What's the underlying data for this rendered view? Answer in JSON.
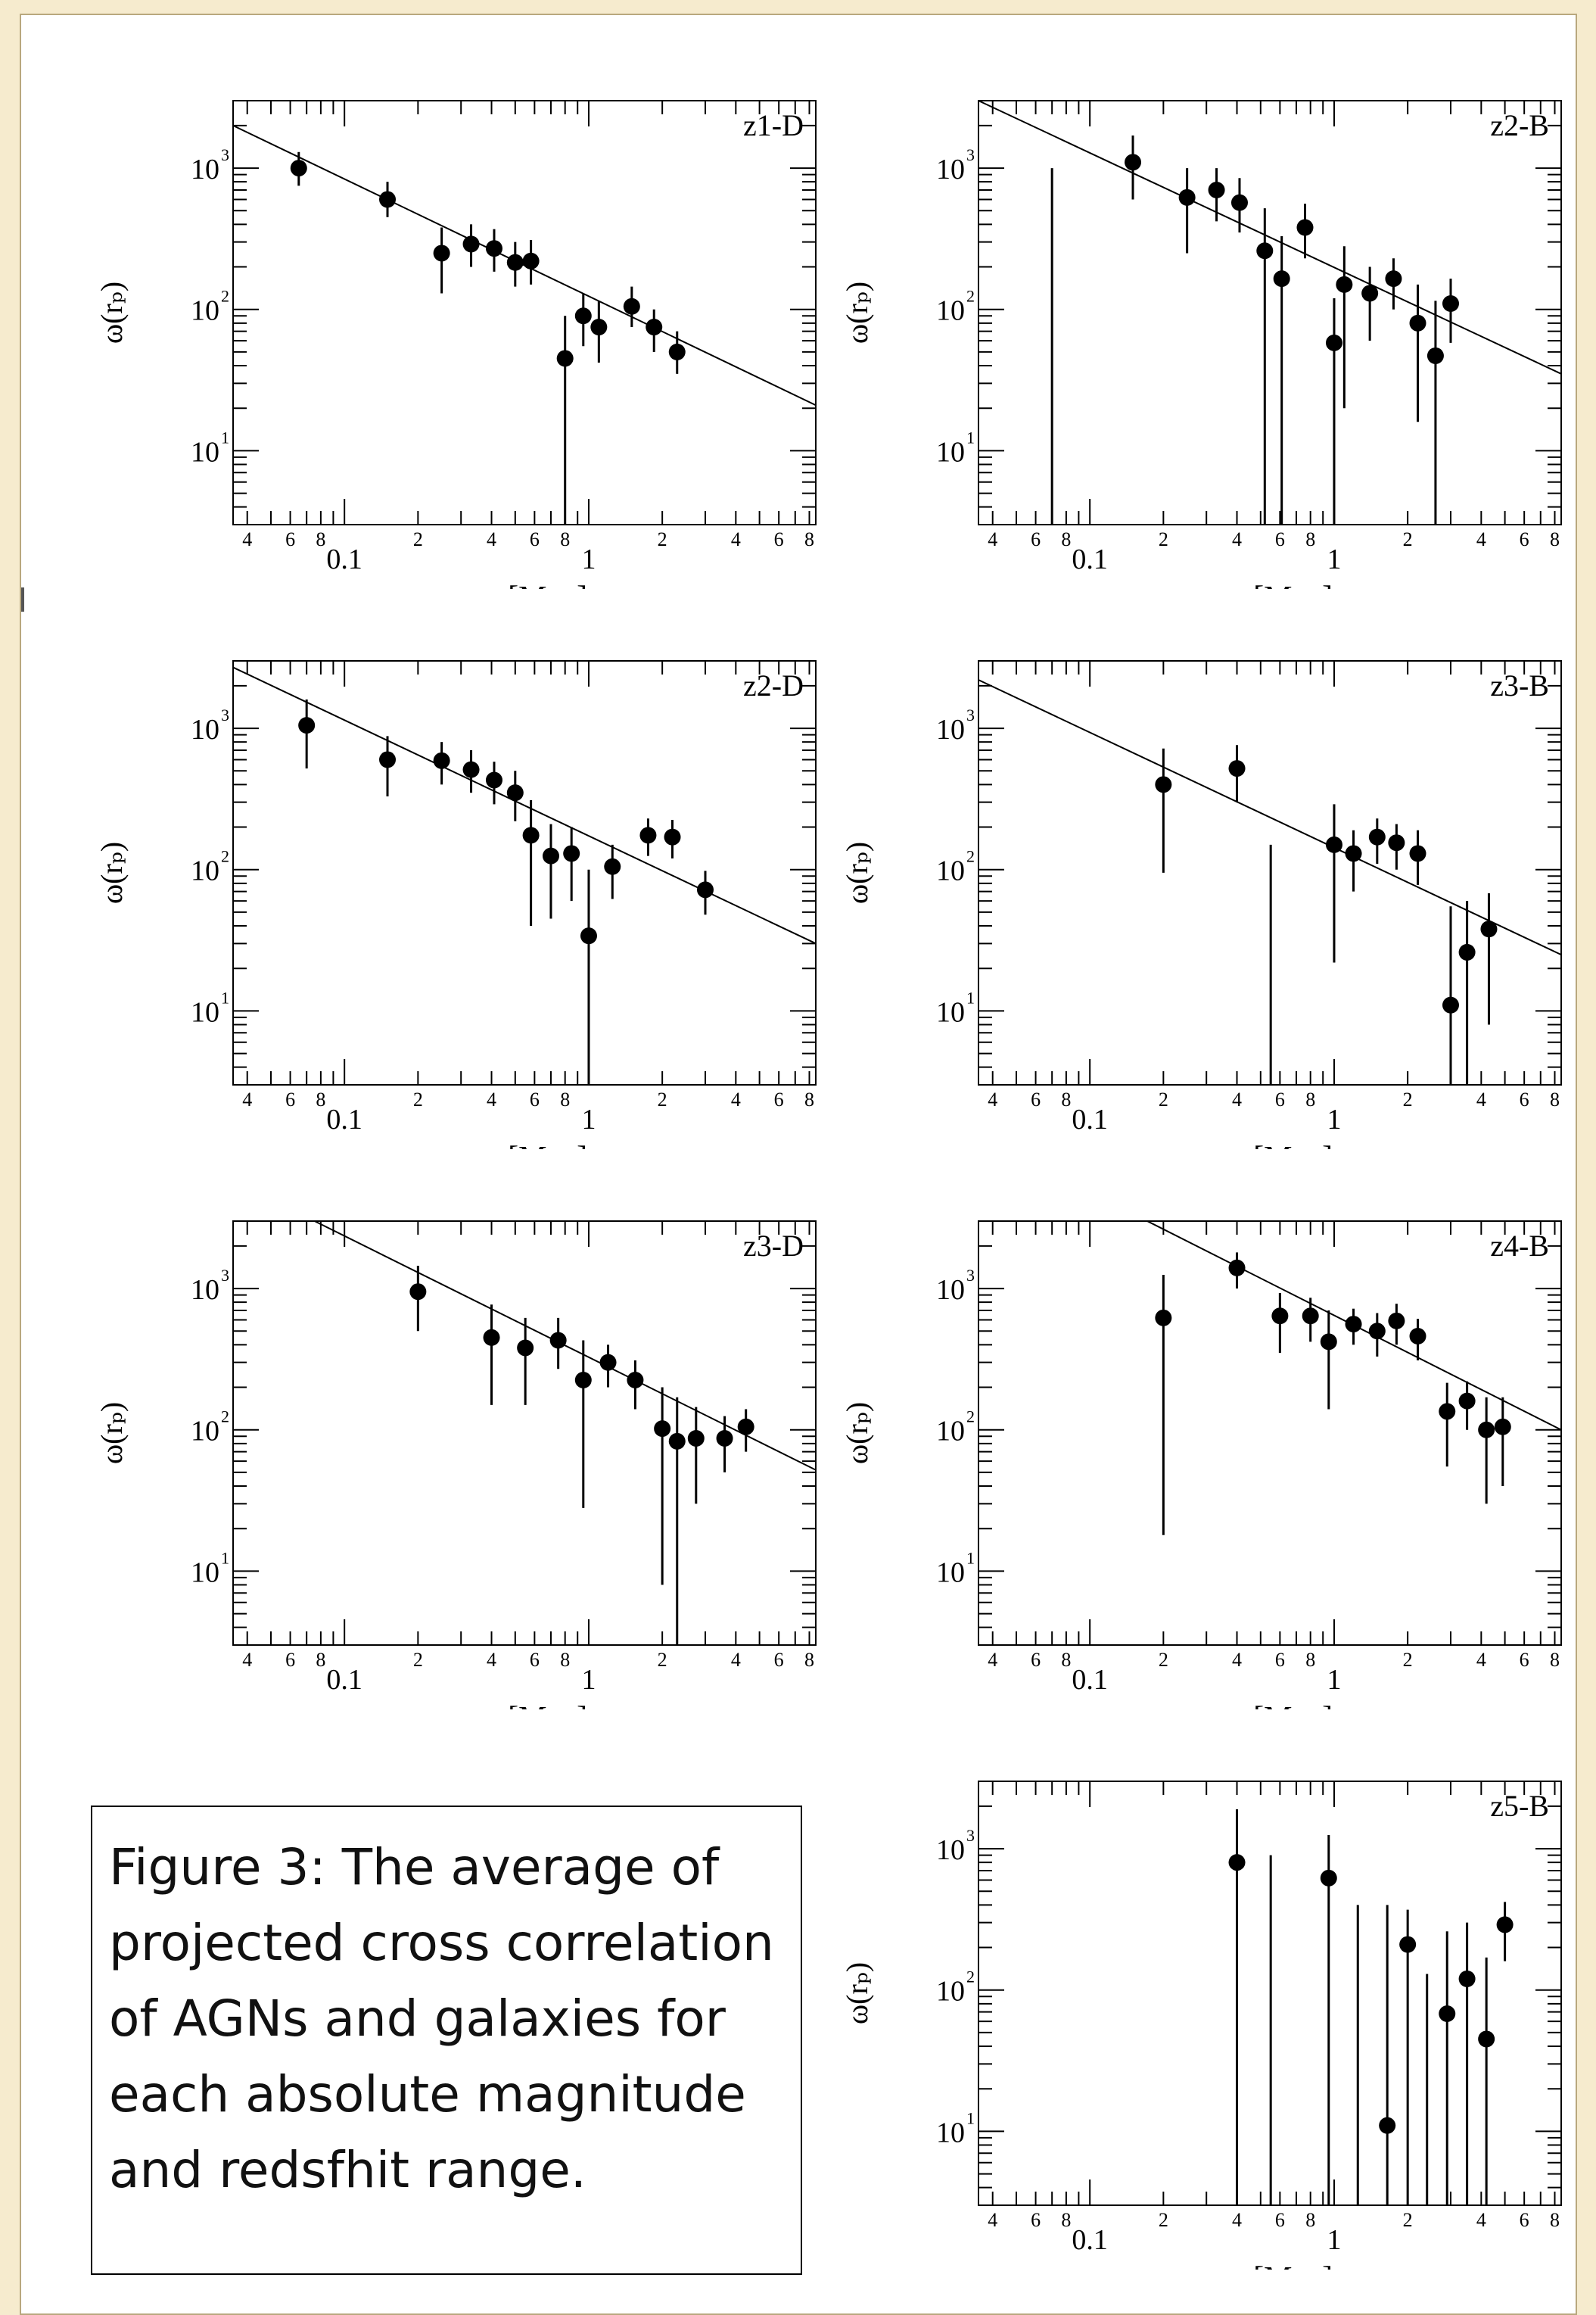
{
  "caption": {
    "text": "Figure 3: The average of projected cross correlation of AGNs and galaxies for each absolute magnitude and redsfhit range."
  },
  "axes": {
    "xlabel": "rₚ [Mpc]",
    "ylabel": "ω(rₚ)",
    "xscale": "log",
    "yscale": "log",
    "xlim": [
      0.035,
      8.5
    ],
    "ylim": [
      3,
      3000
    ],
    "x_major_ticks": [
      {
        "value": 0.1,
        "label": "0.1"
      },
      {
        "value": 1,
        "label": "1"
      }
    ],
    "x_minor_labels": [
      {
        "value": 0.04,
        "label": "4"
      },
      {
        "value": 0.06,
        "label": "6"
      },
      {
        "value": 0.08,
        "label": "8"
      },
      {
        "value": 0.2,
        "label": "2"
      },
      {
        "value": 0.4,
        "label": "4"
      },
      {
        "value": 0.6,
        "label": "6"
      },
      {
        "value": 0.8,
        "label": "8"
      },
      {
        "value": 2,
        "label": "2"
      },
      {
        "value": 4,
        "label": "4"
      },
      {
        "value": 6,
        "label": "6"
      },
      {
        "value": 8,
        "label": "8"
      }
    ],
    "y_ticks": [
      {
        "value": 10,
        "label": "10",
        "exp": "1"
      },
      {
        "value": 100,
        "label": "10",
        "exp": "2"
      },
      {
        "value": 1000,
        "label": "10",
        "exp": "3"
      }
    ]
  },
  "chart_data": [
    {
      "type": "scatter",
      "title": "z1-D",
      "fit_line": [
        [
          0.035,
          2000
        ],
        [
          8.5,
          21
        ]
      ],
      "points": [
        {
          "x": 0.065,
          "y": 1000,
          "lo": 750,
          "hi": 1300
        },
        {
          "x": 0.15,
          "y": 600,
          "lo": 450,
          "hi": 800
        },
        {
          "x": 0.25,
          "y": 250,
          "lo": 130,
          "hi": 380
        },
        {
          "x": 0.33,
          "y": 290,
          "lo": 200,
          "hi": 400
        },
        {
          "x": 0.41,
          "y": 270,
          "lo": 185,
          "hi": 370
        },
        {
          "x": 0.5,
          "y": 215,
          "lo": 145,
          "hi": 300
        },
        {
          "x": 0.58,
          "y": 220,
          "lo": 150,
          "hi": 310
        },
        {
          "x": 0.8,
          "y": 45,
          "lo": 3,
          "hi": 90
        },
        {
          "x": 0.95,
          "y": 90,
          "lo": 55,
          "hi": 130
        },
        {
          "x": 1.1,
          "y": 75,
          "lo": 42,
          "hi": 115
        },
        {
          "x": 1.5,
          "y": 105,
          "lo": 75,
          "hi": 145
        },
        {
          "x": 1.85,
          "y": 75,
          "lo": 50,
          "hi": 100
        },
        {
          "x": 2.3,
          "y": 50,
          "lo": 35,
          "hi": 70
        }
      ]
    },
    {
      "type": "scatter",
      "title": "z2-B",
      "fit_line": [
        [
          0.035,
          3000
        ],
        [
          8.5,
          35
        ]
      ],
      "points": [
        {
          "x": 0.07,
          "y": null,
          "lo": 3,
          "hi": 1000
        },
        {
          "x": 0.15,
          "y": 1100,
          "lo": 600,
          "hi": 1700
        },
        {
          "x": 0.25,
          "y": 620,
          "lo": 250,
          "hi": 1000
        },
        {
          "x": 0.33,
          "y": 700,
          "lo": 420,
          "hi": 1000
        },
        {
          "x": 0.41,
          "y": 570,
          "lo": 350,
          "hi": 850
        },
        {
          "x": 0.52,
          "y": 260,
          "lo": 3,
          "hi": 520
        },
        {
          "x": 0.61,
          "y": 165,
          "lo": 3,
          "hi": 330
        },
        {
          "x": 0.76,
          "y": 380,
          "lo": 230,
          "hi": 560
        },
        {
          "x": 1.0,
          "y": 58,
          "lo": 3,
          "hi": 120
        },
        {
          "x": 1.1,
          "y": 150,
          "lo": 20,
          "hi": 280
        },
        {
          "x": 1.4,
          "y": 130,
          "lo": 60,
          "hi": 200
        },
        {
          "x": 1.75,
          "y": 165,
          "lo": 100,
          "hi": 230
        },
        {
          "x": 2.2,
          "y": 80,
          "lo": 16,
          "hi": 150
        },
        {
          "x": 2.6,
          "y": 47,
          "lo": 3,
          "hi": 115
        },
        {
          "x": 3.0,
          "y": 110,
          "lo": 58,
          "hi": 165
        }
      ]
    },
    {
      "type": "scatter",
      "title": "z2-D",
      "fit_line": [
        [
          0.035,
          2700
        ],
        [
          8.5,
          30
        ]
      ],
      "points": [
        {
          "x": 0.07,
          "y": 1050,
          "lo": 520,
          "hi": 1600
        },
        {
          "x": 0.15,
          "y": 600,
          "lo": 330,
          "hi": 880
        },
        {
          "x": 0.25,
          "y": 590,
          "lo": 400,
          "hi": 800
        },
        {
          "x": 0.33,
          "y": 510,
          "lo": 350,
          "hi": 700
        },
        {
          "x": 0.41,
          "y": 430,
          "lo": 290,
          "hi": 580
        },
        {
          "x": 0.5,
          "y": 350,
          "lo": 220,
          "hi": 500
        },
        {
          "x": 0.58,
          "y": 175,
          "lo": 40,
          "hi": 310
        },
        {
          "x": 0.7,
          "y": 125,
          "lo": 45,
          "hi": 210
        },
        {
          "x": 0.85,
          "y": 130,
          "lo": 60,
          "hi": 200
        },
        {
          "x": 1.0,
          "y": 34,
          "lo": 3,
          "hi": 100
        },
        {
          "x": 1.25,
          "y": 105,
          "lo": 62,
          "hi": 150
        },
        {
          "x": 1.75,
          "y": 175,
          "lo": 125,
          "hi": 230
        },
        {
          "x": 2.2,
          "y": 170,
          "lo": 120,
          "hi": 225
        },
        {
          "x": 3.0,
          "y": 72,
          "lo": 48,
          "hi": 98
        }
      ]
    },
    {
      "type": "scatter",
      "title": "z3-B",
      "fit_line": [
        [
          0.035,
          2200
        ],
        [
          8.5,
          25
        ]
      ],
      "points": [
        {
          "x": 0.2,
          "y": 400,
          "lo": 95,
          "hi": 720
        },
        {
          "x": 0.4,
          "y": 520,
          "lo": 300,
          "hi": 760
        },
        {
          "x": 0.55,
          "y": null,
          "lo": 3,
          "hi": 150
        },
        {
          "x": 1.0,
          "y": 150,
          "lo": 22,
          "hi": 290
        },
        {
          "x": 1.2,
          "y": 130,
          "lo": 70,
          "hi": 190
        },
        {
          "x": 1.5,
          "y": 170,
          "lo": 110,
          "hi": 230
        },
        {
          "x": 1.8,
          "y": 155,
          "lo": 100,
          "hi": 210
        },
        {
          "x": 2.2,
          "y": 130,
          "lo": 78,
          "hi": 190
        },
        {
          "x": 3.0,
          "y": 11,
          "lo": 3,
          "hi": 55
        },
        {
          "x": 3.5,
          "y": 26,
          "lo": 3,
          "hi": 60
        },
        {
          "x": 4.3,
          "y": 38,
          "lo": 8,
          "hi": 68
        }
      ]
    },
    {
      "type": "scatter",
      "title": "z3-D",
      "fit_line": [
        [
          0.035,
          5800
        ],
        [
          8.5,
          52
        ]
      ],
      "points": [
        {
          "x": 0.2,
          "y": 950,
          "lo": 500,
          "hi": 1450
        },
        {
          "x": 0.4,
          "y": 450,
          "lo": 150,
          "hi": 770
        },
        {
          "x": 0.55,
          "y": 380,
          "lo": 150,
          "hi": 620
        },
        {
          "x": 0.75,
          "y": 430,
          "lo": 270,
          "hi": 620
        },
        {
          "x": 0.95,
          "y": 225,
          "lo": 28,
          "hi": 430
        },
        {
          "x": 1.2,
          "y": 300,
          "lo": 200,
          "hi": 400
        },
        {
          "x": 1.55,
          "y": 225,
          "lo": 140,
          "hi": 310
        },
        {
          "x": 2.0,
          "y": 102,
          "lo": 8,
          "hi": 200
        },
        {
          "x": 2.3,
          "y": 83,
          "lo": 3,
          "hi": 170
        },
        {
          "x": 2.75,
          "y": 87,
          "lo": 30,
          "hi": 145
        },
        {
          "x": 3.6,
          "y": 87,
          "lo": 50,
          "hi": 125
        },
        {
          "x": 4.4,
          "y": 105,
          "lo": 70,
          "hi": 140
        }
      ]
    },
    {
      "type": "scatter",
      "title": "z4-B",
      "fit_line": [
        [
          0.035,
          12000
        ],
        [
          8.5,
          100
        ]
      ],
      "points": [
        {
          "x": 0.2,
          "y": 620,
          "lo": 18,
          "hi": 1250
        },
        {
          "x": 0.4,
          "y": 1400,
          "lo": 1000,
          "hi": 1800
        },
        {
          "x": 0.6,
          "y": 640,
          "lo": 350,
          "hi": 930
        },
        {
          "x": 0.8,
          "y": 640,
          "lo": 420,
          "hi": 860
        },
        {
          "x": 0.95,
          "y": 420,
          "lo": 140,
          "hi": 700
        },
        {
          "x": 1.2,
          "y": 560,
          "lo": 400,
          "hi": 720
        },
        {
          "x": 1.5,
          "y": 500,
          "lo": 330,
          "hi": 670
        },
        {
          "x": 1.8,
          "y": 590,
          "lo": 400,
          "hi": 780
        },
        {
          "x": 2.2,
          "y": 460,
          "lo": 310,
          "hi": 610
        },
        {
          "x": 2.9,
          "y": 135,
          "lo": 55,
          "hi": 215
        },
        {
          "x": 3.5,
          "y": 160,
          "lo": 100,
          "hi": 220
        },
        {
          "x": 4.2,
          "y": 100,
          "lo": 30,
          "hi": 170
        },
        {
          "x": 4.9,
          "y": 105,
          "lo": 40,
          "hi": 170
        }
      ]
    },
    {
      "type": "scatter",
      "title": "z5-B",
      "fit_line": null,
      "points": [
        {
          "x": 0.4,
          "y": 800,
          "lo": 3,
          "hi": 1900
        },
        {
          "x": 0.55,
          "y": null,
          "lo": 3,
          "hi": 900
        },
        {
          "x": 0.95,
          "y": 620,
          "lo": 3,
          "hi": 1250
        },
        {
          "x": 1.25,
          "y": null,
          "lo": 3,
          "hi": 400
        },
        {
          "x": 1.65,
          "y": 11,
          "lo": 3,
          "hi": 400
        },
        {
          "x": 2.0,
          "y": 210,
          "lo": 3,
          "hi": 370
        },
        {
          "x": 2.4,
          "y": null,
          "lo": 3,
          "hi": 130
        },
        {
          "x": 2.9,
          "y": 68,
          "lo": 3,
          "hi": 260
        },
        {
          "x": 3.5,
          "y": 120,
          "lo": 3,
          "hi": 300
        },
        {
          "x": 4.2,
          "y": 45,
          "lo": 3,
          "hi": 170
        },
        {
          "x": 5.0,
          "y": 290,
          "lo": 160,
          "hi": 420
        }
      ]
    }
  ]
}
